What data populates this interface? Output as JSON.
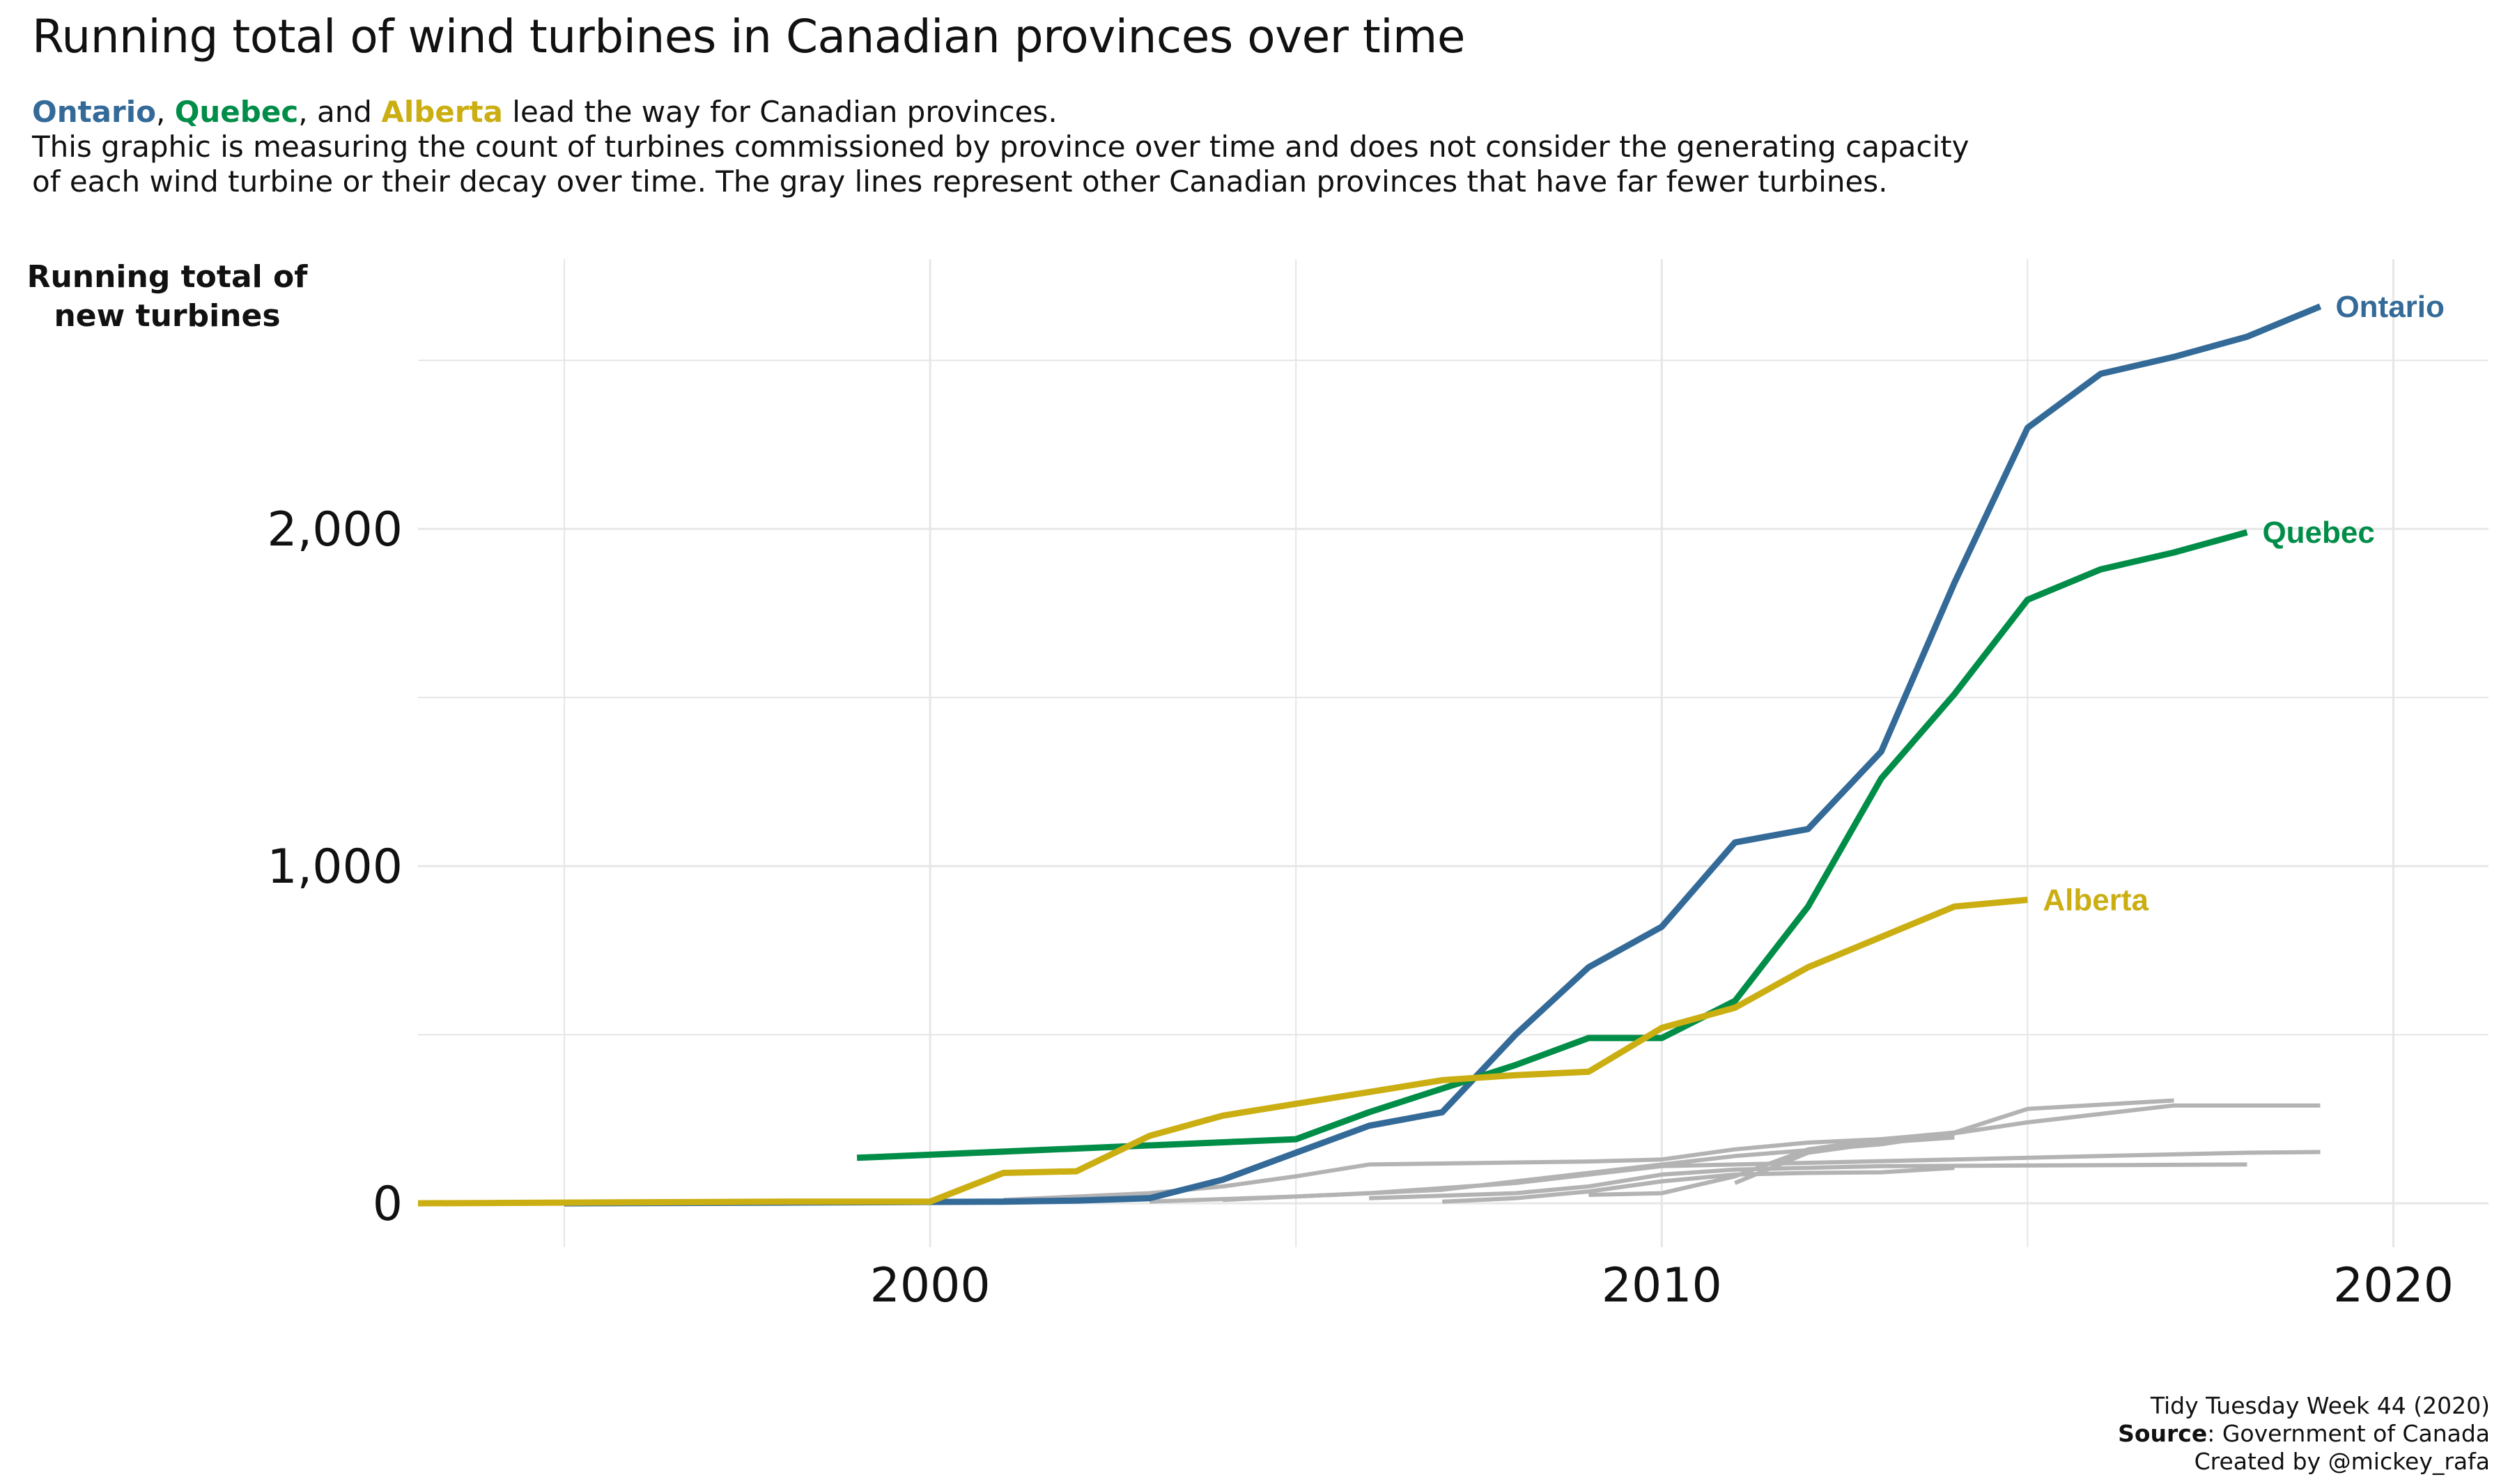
{
  "title": "Running total of wind turbines in Canadian provinces over time",
  "subtitle": {
    "ontario": "Ontario",
    "sep1": ", ",
    "quebec": "Quebec",
    "sep2": ", and ",
    "alberta": "Alberta",
    "rest": " lead the way for Canadian provinces.",
    "line2": "This graphic is measuring the count of turbines commissioned by province over time and does not consider the generating capacity",
    "line3": "of each wind turbine or their decay over time. The gray lines represent other Canadian provinces that have far fewer turbines."
  },
  "y_axis_label_line1": "Running total of",
  "y_axis_label_line2": "new turbines",
  "caption": {
    "line1": "Tidy Tuesday Week 44 (2020)",
    "source_label": "Source",
    "source_text": ": Government of Canada",
    "line3": "Created by @mickey_rafa"
  },
  "colors": {
    "ontario": "#336a98",
    "quebec": "#008d48",
    "alberta": "#cbae12",
    "other": "#b3b3b3",
    "grid": "#e6e6e6"
  },
  "chart_data": {
    "type": "line",
    "title": "Running total of wind turbines in Canadian provinces over time",
    "ylabel": "Running total of new turbines",
    "xlabel": "",
    "xlim": [
      1993,
      2021.3
    ],
    "ylim": [
      -130,
      2800
    ],
    "x_ticks": [
      2000,
      2010,
      2020
    ],
    "x_tick_labels": [
      "2000",
      "2010",
      "2020"
    ],
    "y_ticks": [
      0,
      1000,
      2000
    ],
    "y_tick_labels": [
      "0",
      "1,000",
      "2,000"
    ],
    "grid": true,
    "legend": "direct labels at line ends",
    "series": [
      {
        "name": "Ontario",
        "color": "#336a98",
        "x": [
          1995,
          1998,
          2001,
          2002,
          2003,
          2004,
          2005,
          2006,
          2007,
          2008,
          2009,
          2010,
          2011,
          2012,
          2013,
          2014,
          2015,
          2016,
          2017,
          2018,
          2019
        ],
        "y": [
          0,
          2,
          5,
          8,
          15,
          70,
          150,
          230,
          270,
          500,
          700,
          820,
          1070,
          1110,
          1340,
          1840,
          2300,
          2460,
          2510,
          2570,
          2660
        ]
      },
      {
        "name": "Quebec",
        "color": "#008d48",
        "x": [
          1999,
          2005,
          2006,
          2007,
          2008,
          2009,
          2010,
          2011,
          2012,
          2013,
          2014,
          2015,
          2016,
          2017,
          2018
        ],
        "y": [
          135,
          190,
          270,
          340,
          410,
          490,
          490,
          600,
          880,
          1260,
          1510,
          1790,
          1880,
          1930,
          1990
        ]
      },
      {
        "name": "Alberta",
        "color": "#cbae12",
        "x": [
          1993,
          1998,
          2000,
          2001,
          2002,
          2003,
          2004,
          2005,
          2006,
          2007,
          2008,
          2009,
          2010,
          2011,
          2012,
          2013,
          2014,
          2015
        ],
        "y": [
          0,
          5,
          5,
          90,
          95,
          200,
          260,
          295,
          330,
          365,
          380,
          390,
          520,
          580,
          700,
          790,
          880,
          900
        ]
      },
      {
        "name": "",
        "color": "#b3b3b3",
        "x": [
          2001,
          2003,
          2004,
          2005,
          2006,
          2007,
          2008,
          2009,
          2010,
          2011,
          2012,
          2013,
          2014,
          2015,
          2017
        ],
        "y": [
          10,
          30,
          50,
          80,
          115,
          118,
          121,
          124,
          130,
          160,
          180,
          190,
          210,
          280,
          305
        ]
      },
      {
        "name": "",
        "color": "#b3b3b3",
        "x": [
          2003,
          2005,
          2007,
          2009,
          2011,
          2013,
          2015,
          2017,
          2019
        ],
        "y": [
          5,
          20,
          40,
          90,
          140,
          175,
          240,
          290,
          290
        ]
      },
      {
        "name": "",
        "color": "#b3b3b3",
        "x": [
          2004,
          2006,
          2008,
          2010,
          2012,
          2014,
          2016,
          2018,
          2019
        ],
        "y": [
          10,
          30,
          60,
          110,
          120,
          130,
          140,
          150,
          152
        ]
      },
      {
        "name": "",
        "color": "#b3b3b3",
        "x": [
          2006,
          2008,
          2009,
          2010,
          2011,
          2013,
          2018
        ],
        "y": [
          15,
          30,
          50,
          85,
          100,
          110,
          115
        ]
      },
      {
        "name": "",
        "color": "#b3b3b3",
        "x": [
          2007,
          2008,
          2009,
          2010,
          2011,
          2012,
          2013,
          2014
        ],
        "y": [
          5,
          15,
          35,
          65,
          85,
          90,
          92,
          105
        ]
      },
      {
        "name": "",
        "color": "#b3b3b3",
        "x": [
          2009,
          2010,
          2011,
          2012,
          2013,
          2014
        ],
        "y": [
          25,
          30,
          80,
          160,
          190,
          205
        ]
      },
      {
        "name": "",
        "color": "#b3b3b3",
        "x": [
          2011,
          2012,
          2013,
          2014
        ],
        "y": [
          60,
          150,
          180,
          195
        ]
      }
    ]
  }
}
